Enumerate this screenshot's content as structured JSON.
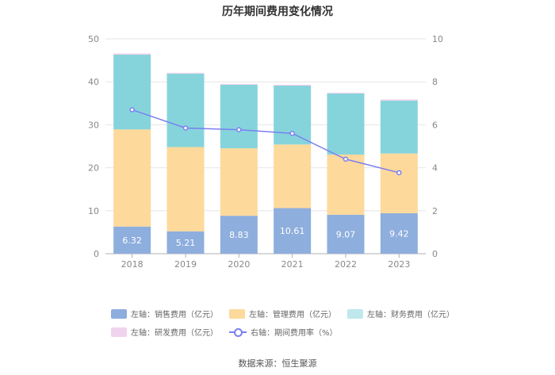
{
  "chart_data": {
    "type": "bar",
    "title": "历年期间费用变化情况",
    "categories": [
      "2018",
      "2019",
      "2020",
      "2021",
      "2022",
      "2023"
    ],
    "series": [
      {
        "name": "左轴：销售费用（亿元）",
        "axis": "left",
        "color": "#8eaedd",
        "values": [
          6.32,
          5.21,
          8.83,
          10.61,
          9.07,
          9.42
        ],
        "labeled": true
      },
      {
        "name": "左轴：管理费用（亿元）",
        "axis": "left",
        "color": "#fdd99b",
        "values": [
          22.6,
          19.6,
          15.7,
          14.8,
          14.0,
          13.9
        ],
        "labeled": false
      },
      {
        "name": "左轴：财务费用（亿元）",
        "axis": "left",
        "color": "#86d4db",
        "values": [
          17.4,
          17.1,
          14.8,
          13.7,
          14.2,
          12.3
        ],
        "labeled": false
      },
      {
        "name": "左轴：研发费用（亿元）",
        "axis": "left",
        "color": "#f0d3ec",
        "values": [
          0.3,
          0.2,
          0.2,
          0.2,
          0.2,
          0.3
        ],
        "labeled": false
      }
    ],
    "line_series": {
      "name": "右轴：期间费用率（%）",
      "axis": "right",
      "color": "#7b7ff0",
      "values": [
        6.7,
        5.85,
        5.77,
        5.6,
        4.4,
        3.77
      ]
    },
    "left_axis": {
      "min": 0,
      "max": 50,
      "ticks": [
        0,
        10,
        20,
        30,
        40,
        50
      ]
    },
    "right_axis": {
      "min": 0,
      "max": 10,
      "ticks": [
        0,
        2,
        4,
        6,
        8,
        10
      ]
    },
    "legend_position": "bottom"
  },
  "source": "数据来源：恒生聚源"
}
